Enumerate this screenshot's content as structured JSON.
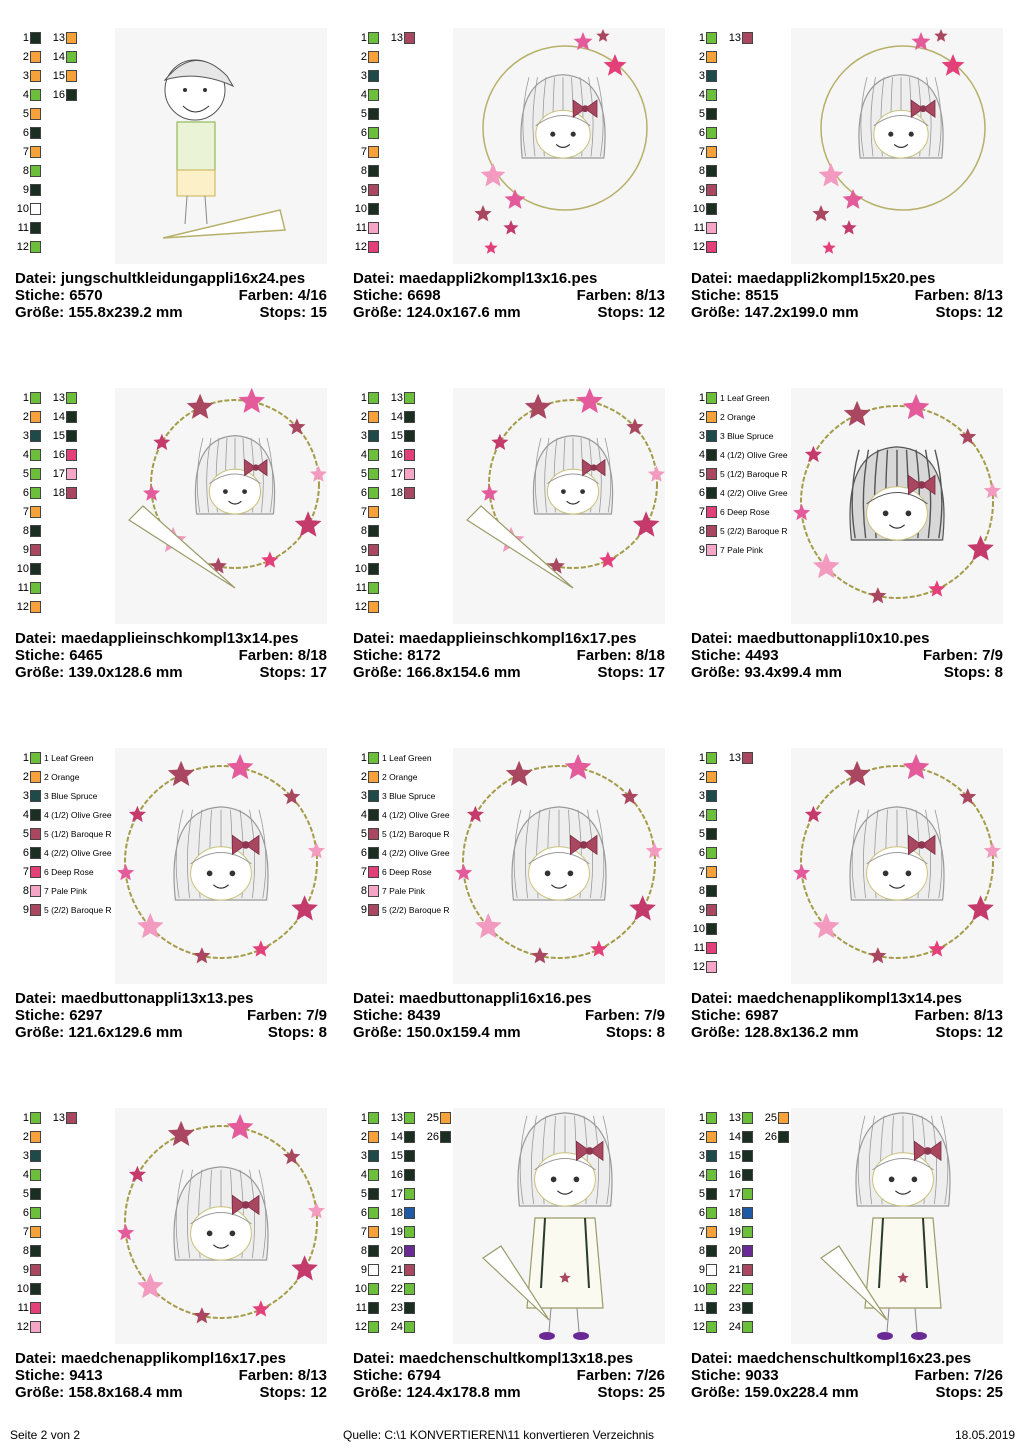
{
  "colors": {
    "leaf_green": "#6cbf3a",
    "orange": "#f7a13a",
    "blue_spruce": "#1f4a4a",
    "olive_dark": "#1b2e22",
    "baroque_rose": "#a8475f",
    "deep_rose": "#e33f78",
    "pale_pink": "#f5a6c6",
    "white": "#ffffff",
    "blue": "#1f5aa6",
    "purple": "#6a2a96"
  },
  "labels": {
    "datei": "Datei:",
    "stiche": "Stiche:",
    "farben": "Farben:",
    "groesse": "Größe:",
    "stops": "Stops:"
  },
  "designs": [
    {
      "file": "jungschultkleidungappli16x24.pes",
      "stiche": "6570",
      "farben": "4/16",
      "groesse": "155.8x239.2 mm",
      "stops": "15",
      "art": "boy",
      "legend": [
        [
          {
            "n": "1",
            "c": "olive_dark"
          },
          {
            "n": "2",
            "c": "orange"
          },
          {
            "n": "3",
            "c": "orange"
          },
          {
            "n": "4",
            "c": "leaf_green"
          },
          {
            "n": "5",
            "c": "orange"
          },
          {
            "n": "6",
            "c": "olive_dark"
          },
          {
            "n": "7",
            "c": "orange"
          },
          {
            "n": "8",
            "c": "leaf_green"
          },
          {
            "n": "9",
            "c": "olive_dark"
          },
          {
            "n": "10",
            "c": "white"
          },
          {
            "n": "11",
            "c": "olive_dark"
          },
          {
            "n": "12",
            "c": "leaf_green"
          }
        ],
        [
          {
            "n": "13",
            "c": "orange"
          },
          {
            "n": "14",
            "c": "leaf_green"
          },
          {
            "n": "15",
            "c": "orange"
          },
          {
            "n": "16",
            "c": "olive_dark"
          }
        ]
      ]
    },
    {
      "file": "maedappli2kompl13x16.pes",
      "stiche": "6698",
      "farben": "8/13",
      "groesse": "124.0x167.6 mm",
      "stops": "12",
      "art": "circle_stars",
      "legend": [
        [
          {
            "n": "1",
            "c": "leaf_green"
          },
          {
            "n": "2",
            "c": "orange"
          },
          {
            "n": "3",
            "c": "blue_spruce"
          },
          {
            "n": "4",
            "c": "leaf_green"
          },
          {
            "n": "5",
            "c": "olive_dark"
          },
          {
            "n": "6",
            "c": "leaf_green"
          },
          {
            "n": "7",
            "c": "orange"
          },
          {
            "n": "8",
            "c": "olive_dark"
          },
          {
            "n": "9",
            "c": "baroque_rose"
          },
          {
            "n": "10",
            "c": "olive_dark"
          },
          {
            "n": "11",
            "c": "pale_pink"
          },
          {
            "n": "12",
            "c": "deep_rose"
          }
        ],
        [
          {
            "n": "13",
            "c": "baroque_rose"
          }
        ]
      ]
    },
    {
      "file": "maedappli2kompl15x20.pes",
      "stiche": "8515",
      "farben": "8/13",
      "groesse": "147.2x199.0 mm",
      "stops": "12",
      "art": "circle_stars",
      "legend": [
        [
          {
            "n": "1",
            "c": "leaf_green"
          },
          {
            "n": "2",
            "c": "orange"
          },
          {
            "n": "3",
            "c": "blue_spruce"
          },
          {
            "n": "4",
            "c": "leaf_green"
          },
          {
            "n": "5",
            "c": "olive_dark"
          },
          {
            "n": "6",
            "c": "leaf_green"
          },
          {
            "n": "7",
            "c": "orange"
          },
          {
            "n": "8",
            "c": "olive_dark"
          },
          {
            "n": "9",
            "c": "baroque_rose"
          },
          {
            "n": "10",
            "c": "olive_dark"
          },
          {
            "n": "11",
            "c": "pale_pink"
          },
          {
            "n": "12",
            "c": "deep_rose"
          }
        ],
        [
          {
            "n": "13",
            "c": "baroque_rose"
          }
        ]
      ]
    },
    {
      "file": "maedapplieinschkompl13x14.pes",
      "stiche": "6465",
      "farben": "8/18",
      "groesse": "139.0x128.6 mm",
      "stops": "17",
      "art": "ring_cone",
      "legend": [
        [
          {
            "n": "1",
            "c": "leaf_green"
          },
          {
            "n": "2",
            "c": "orange"
          },
          {
            "n": "3",
            "c": "blue_spruce"
          },
          {
            "n": "4",
            "c": "leaf_green"
          },
          {
            "n": "5",
            "c": "leaf_green"
          },
          {
            "n": "6",
            "c": "leaf_green"
          },
          {
            "n": "7",
            "c": "orange"
          },
          {
            "n": "8",
            "c": "olive_dark"
          },
          {
            "n": "9",
            "c": "baroque_rose"
          },
          {
            "n": "10",
            "c": "olive_dark"
          },
          {
            "n": "11",
            "c": "leaf_green"
          },
          {
            "n": "12",
            "c": "orange"
          }
        ],
        [
          {
            "n": "13",
            "c": "leaf_green"
          },
          {
            "n": "14",
            "c": "olive_dark"
          },
          {
            "n": "15",
            "c": "olive_dark"
          },
          {
            "n": "16",
            "c": "deep_rose"
          },
          {
            "n": "17",
            "c": "pale_pink"
          },
          {
            "n": "18",
            "c": "baroque_rose"
          }
        ]
      ]
    },
    {
      "file": "maedapplieinschkompl16x17.pes",
      "stiche": "8172",
      "farben": "8/18",
      "groesse": "166.8x154.6 mm",
      "stops": "17",
      "art": "ring_cone",
      "legend": [
        [
          {
            "n": "1",
            "c": "leaf_green"
          },
          {
            "n": "2",
            "c": "orange"
          },
          {
            "n": "3",
            "c": "blue_spruce"
          },
          {
            "n": "4",
            "c": "leaf_green"
          },
          {
            "n": "5",
            "c": "leaf_green"
          },
          {
            "n": "6",
            "c": "leaf_green"
          },
          {
            "n": "7",
            "c": "orange"
          },
          {
            "n": "8",
            "c": "olive_dark"
          },
          {
            "n": "9",
            "c": "baroque_rose"
          },
          {
            "n": "10",
            "c": "olive_dark"
          },
          {
            "n": "11",
            "c": "leaf_green"
          },
          {
            "n": "12",
            "c": "orange"
          }
        ],
        [
          {
            "n": "13",
            "c": "leaf_green"
          },
          {
            "n": "14",
            "c": "olive_dark"
          },
          {
            "n": "15",
            "c": "olive_dark"
          },
          {
            "n": "16",
            "c": "deep_rose"
          },
          {
            "n": "17",
            "c": "pale_pink"
          },
          {
            "n": "18",
            "c": "baroque_rose"
          }
        ]
      ]
    },
    {
      "file": "maedbuttonappli10x10.pes",
      "stiche": "4493",
      "farben": "7/9",
      "groesse": "93.4x99.4 mm",
      "stops": "8",
      "art": "ring_dark",
      "legend": [
        [
          {
            "n": "1",
            "c": "leaf_green",
            "l": "1 Leaf Green"
          },
          {
            "n": "2",
            "c": "orange",
            "l": "2 Orange"
          },
          {
            "n": "3",
            "c": "blue_spruce",
            "l": "3 Blue Spruce"
          },
          {
            "n": "4",
            "c": "olive_dark",
            "l": "4 (1/2) Olive Gree"
          },
          {
            "n": "5",
            "c": "baroque_rose",
            "l": "5 (1/2) Baroque R"
          },
          {
            "n": "6",
            "c": "olive_dark",
            "l": "4 (2/2) Olive Gree"
          },
          {
            "n": "7",
            "c": "deep_rose",
            "l": "6 Deep Rose"
          },
          {
            "n": "8",
            "c": "baroque_rose",
            "l": "5 (2/2) Baroque R"
          },
          {
            "n": "9",
            "c": "pale_pink",
            "l": "7 Pale Pink"
          }
        ]
      ]
    },
    {
      "file": "maedbuttonappli13x13.pes",
      "stiche": "6297",
      "farben": "7/9",
      "groesse": "121.6x129.6 mm",
      "stops": "8",
      "art": "ring",
      "legend": [
        [
          {
            "n": "1",
            "c": "leaf_green",
            "l": "1 Leaf Green"
          },
          {
            "n": "2",
            "c": "orange",
            "l": "2 Orange"
          },
          {
            "n": "3",
            "c": "blue_spruce",
            "l": "3 Blue Spruce"
          },
          {
            "n": "4",
            "c": "olive_dark",
            "l": "4 (1/2) Olive Gree"
          },
          {
            "n": "5",
            "c": "baroque_rose",
            "l": "5 (1/2) Baroque R"
          },
          {
            "n": "6",
            "c": "olive_dark",
            "l": "4 (2/2) Olive Gree"
          },
          {
            "n": "7",
            "c": "deep_rose",
            "l": "6 Deep Rose"
          },
          {
            "n": "8",
            "c": "pale_pink",
            "l": "7 Pale Pink"
          },
          {
            "n": "9",
            "c": "baroque_rose",
            "l": "5 (2/2) Baroque R"
          }
        ]
      ]
    },
    {
      "file": "maedbuttonappli16x16.pes",
      "stiche": "8439",
      "farben": "7/9",
      "groesse": "150.0x159.4 mm",
      "stops": "8",
      "art": "ring",
      "legend": [
        [
          {
            "n": "1",
            "c": "leaf_green",
            "l": "1 Leaf Green"
          },
          {
            "n": "2",
            "c": "orange",
            "l": "2 Orange"
          },
          {
            "n": "3",
            "c": "blue_spruce",
            "l": "3 Blue Spruce"
          },
          {
            "n": "4",
            "c": "olive_dark",
            "l": "4 (1/2) Olive Gree"
          },
          {
            "n": "5",
            "c": "baroque_rose",
            "l": "5 (1/2) Baroque R"
          },
          {
            "n": "6",
            "c": "olive_dark",
            "l": "4 (2/2) Olive Gree"
          },
          {
            "n": "7",
            "c": "deep_rose",
            "l": "6 Deep Rose"
          },
          {
            "n": "8",
            "c": "pale_pink",
            "l": "7 Pale Pink"
          },
          {
            "n": "9",
            "c": "baroque_rose",
            "l": "5 (2/2) Baroque R"
          }
        ]
      ]
    },
    {
      "file": "maedchenapplikompl13x14.pes",
      "stiche": "6987",
      "farben": "8/13",
      "groesse": "128.8x136.2 mm",
      "stops": "12",
      "art": "ring",
      "legend": [
        [
          {
            "n": "1",
            "c": "leaf_green"
          },
          {
            "n": "2",
            "c": "orange"
          },
          {
            "n": "3",
            "c": "blue_spruce"
          },
          {
            "n": "4",
            "c": "leaf_green"
          },
          {
            "n": "5",
            "c": "olive_dark"
          },
          {
            "n": "6",
            "c": "leaf_green"
          },
          {
            "n": "7",
            "c": "orange"
          },
          {
            "n": "8",
            "c": "olive_dark"
          },
          {
            "n": "9",
            "c": "baroque_rose"
          },
          {
            "n": "10",
            "c": "olive_dark"
          },
          {
            "n": "11",
            "c": "deep_rose"
          },
          {
            "n": "12",
            "c": "pale_pink"
          }
        ],
        [
          {
            "n": "13",
            "c": "baroque_rose"
          }
        ]
      ]
    },
    {
      "file": "maedchenapplikompl16x17.pes",
      "stiche": "9413",
      "farben": "8/13",
      "groesse": "158.8x168.4 mm",
      "stops": "12",
      "art": "ring",
      "legend": [
        [
          {
            "n": "1",
            "c": "leaf_green"
          },
          {
            "n": "2",
            "c": "orange"
          },
          {
            "n": "3",
            "c": "blue_spruce"
          },
          {
            "n": "4",
            "c": "leaf_green"
          },
          {
            "n": "5",
            "c": "olive_dark"
          },
          {
            "n": "6",
            "c": "leaf_green"
          },
          {
            "n": "7",
            "c": "orange"
          },
          {
            "n": "8",
            "c": "olive_dark"
          },
          {
            "n": "9",
            "c": "baroque_rose"
          },
          {
            "n": "10",
            "c": "olive_dark"
          },
          {
            "n": "11",
            "c": "deep_rose"
          },
          {
            "n": "12",
            "c": "pale_pink"
          }
        ],
        [
          {
            "n": "13",
            "c": "baroque_rose"
          }
        ]
      ]
    },
    {
      "file": "maedchenschultkompl13x18.pes",
      "stiche": "6794",
      "farben": "7/26",
      "groesse": "124.4x178.8 mm",
      "stops": "25",
      "art": "girl",
      "legend": [
        [
          {
            "n": "1",
            "c": "leaf_green"
          },
          {
            "n": "2",
            "c": "orange"
          },
          {
            "n": "3",
            "c": "blue_spruce"
          },
          {
            "n": "4",
            "c": "leaf_green"
          },
          {
            "n": "5",
            "c": "olive_dark"
          },
          {
            "n": "6",
            "c": "leaf_green"
          },
          {
            "n": "7",
            "c": "orange"
          },
          {
            "n": "8",
            "c": "olive_dark"
          },
          {
            "n": "9",
            "c": "white"
          },
          {
            "n": "10",
            "c": "leaf_green"
          },
          {
            "n": "11",
            "c": "olive_dark"
          },
          {
            "n": "12",
            "c": "leaf_green"
          }
        ],
        [
          {
            "n": "13",
            "c": "leaf_green"
          },
          {
            "n": "14",
            "c": "olive_dark"
          },
          {
            "n": "15",
            "c": "olive_dark"
          },
          {
            "n": "16",
            "c": "olive_dark"
          },
          {
            "n": "17",
            "c": "leaf_green"
          },
          {
            "n": "18",
            "c": "blue"
          },
          {
            "n": "19",
            "c": "leaf_green"
          },
          {
            "n": "20",
            "c": "purple"
          },
          {
            "n": "21",
            "c": "baroque_rose"
          },
          {
            "n": "22",
            "c": "leaf_green"
          },
          {
            "n": "23",
            "c": "olive_dark"
          },
          {
            "n": "24",
            "c": "leaf_green"
          }
        ],
        [
          {
            "n": "25",
            "c": "orange"
          },
          {
            "n": "26",
            "c": "olive_dark"
          }
        ]
      ]
    },
    {
      "file": "maedchenschultkompl16x23.pes",
      "stiche": "9033",
      "farben": "7/26",
      "groesse": "159.0x228.4 mm",
      "stops": "25",
      "art": "girl",
      "legend": [
        [
          {
            "n": "1",
            "c": "leaf_green"
          },
          {
            "n": "2",
            "c": "orange"
          },
          {
            "n": "3",
            "c": "blue_spruce"
          },
          {
            "n": "4",
            "c": "leaf_green"
          },
          {
            "n": "5",
            "c": "olive_dark"
          },
          {
            "n": "6",
            "c": "leaf_green"
          },
          {
            "n": "7",
            "c": "orange"
          },
          {
            "n": "8",
            "c": "olive_dark"
          },
          {
            "n": "9",
            "c": "white"
          },
          {
            "n": "10",
            "c": "leaf_green"
          },
          {
            "n": "11",
            "c": "olive_dark"
          },
          {
            "n": "12",
            "c": "leaf_green"
          }
        ],
        [
          {
            "n": "13",
            "c": "leaf_green"
          },
          {
            "n": "14",
            "c": "olive_dark"
          },
          {
            "n": "15",
            "c": "olive_dark"
          },
          {
            "n": "16",
            "c": "olive_dark"
          },
          {
            "n": "17",
            "c": "leaf_green"
          },
          {
            "n": "18",
            "c": "blue"
          },
          {
            "n": "19",
            "c": "leaf_green"
          },
          {
            "n": "20",
            "c": "purple"
          },
          {
            "n": "21",
            "c": "baroque_rose"
          },
          {
            "n": "22",
            "c": "leaf_green"
          },
          {
            "n": "23",
            "c": "olive_dark"
          },
          {
            "n": "24",
            "c": "leaf_green"
          }
        ],
        [
          {
            "n": "25",
            "c": "orange"
          },
          {
            "n": "26",
            "c": "olive_dark"
          }
        ]
      ]
    }
  ],
  "footer": {
    "page": "Seite 2 von 2",
    "source": "Quelle: C:\\1 KONVERTIEREN\\11 konvertieren Verzeichnis",
    "date": "18.05.2019"
  }
}
